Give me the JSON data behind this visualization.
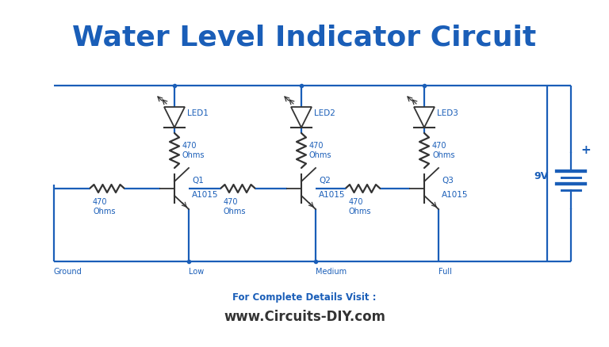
{
  "title": "Water Level Indicator Circuit",
  "title_color": "#1a5eb8",
  "title_fontsize": 26,
  "title_fontweight": "bold",
  "bg_color": "#ffffff",
  "circuit_color": "#1a5eb8",
  "component_color": "#333333",
  "label_color": "#1a5eb8",
  "footer_text1": "For Complete Details Visit :",
  "footer_text2": "www.Circuits-DIY.com",
  "footer_color1": "#1a5eb8",
  "footer_color2": "#333333",
  "ground_label": "Ground",
  "probe_labels": [
    "Low",
    "Medium",
    "Full"
  ],
  "transistor_labels": [
    "Q1",
    "Q2",
    "Q3"
  ],
  "transistor_sublabels": [
    "A1015",
    "A1015",
    "A1015"
  ],
  "led_labels": [
    "LED1",
    "LED2",
    "LED3"
  ],
  "resistor_label": "470\nOhms",
  "battery_label": "9V"
}
